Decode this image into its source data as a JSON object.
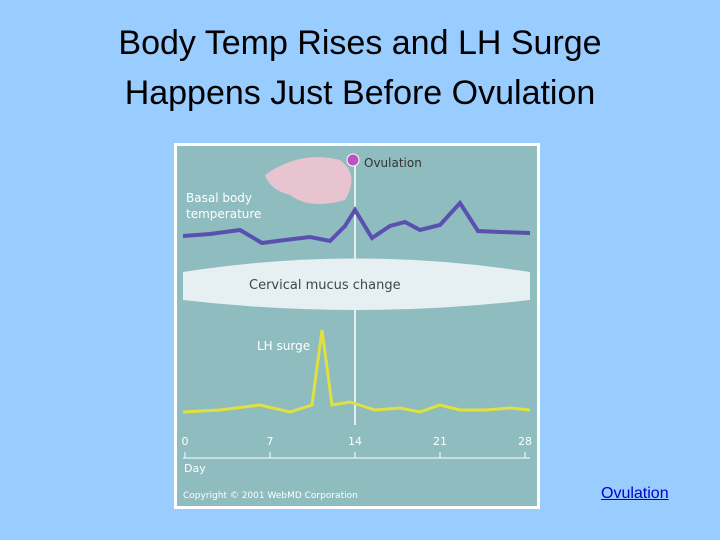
{
  "slide": {
    "title_lines": [
      "Body Temp Rises and LH Surge",
      "Happens Just Before Ovulation"
    ],
    "link": "Ovulation"
  },
  "figure": {
    "ovulation_label": "Ovulation",
    "bbt_label_lines": [
      "Basal body",
      "temperature"
    ],
    "mucus_label": "Cervical mucus change",
    "lh_label": "LH surge",
    "day_ticks": [
      "0",
      "7",
      "14",
      "21",
      "28"
    ],
    "axis_label": "Day",
    "copyright": "Copyright © 2001 WebMD Corporation"
  }
}
